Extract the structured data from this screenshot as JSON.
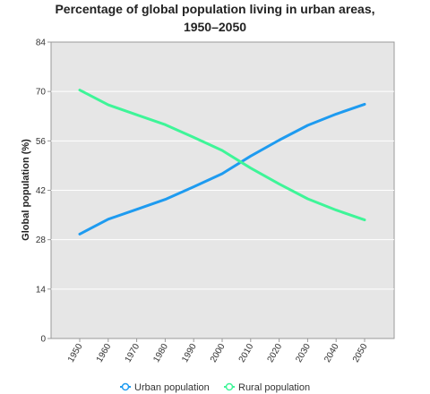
{
  "chart_data": {
    "type": "line",
    "title_line1": "Percentage of global population living in urban areas,",
    "title_line2": "1950–2050",
    "xlabel": "",
    "ylabel": "Global population (%)",
    "x": [
      "1950",
      "1960",
      "1970",
      "1980",
      "1990",
      "2000",
      "2010",
      "2020",
      "2030",
      "2040",
      "2050"
    ],
    "ylim": [
      0,
      84
    ],
    "yticks": [
      0,
      14,
      28,
      42,
      56,
      70,
      84
    ],
    "grid": true,
    "legend_position": "bottom",
    "series": [
      {
        "name": "Urban population",
        "color": "#1e9bf0",
        "values": [
          29.6,
          33.8,
          36.6,
          39.4,
          43.0,
          46.7,
          51.7,
          56.2,
          60.4,
          63.6,
          66.4
        ]
      },
      {
        "name": "Rural population",
        "color": "#3ef598",
        "values": [
          70.4,
          66.2,
          63.4,
          60.6,
          57.0,
          53.3,
          48.3,
          43.8,
          39.6,
          36.4,
          33.6
        ]
      }
    ]
  }
}
